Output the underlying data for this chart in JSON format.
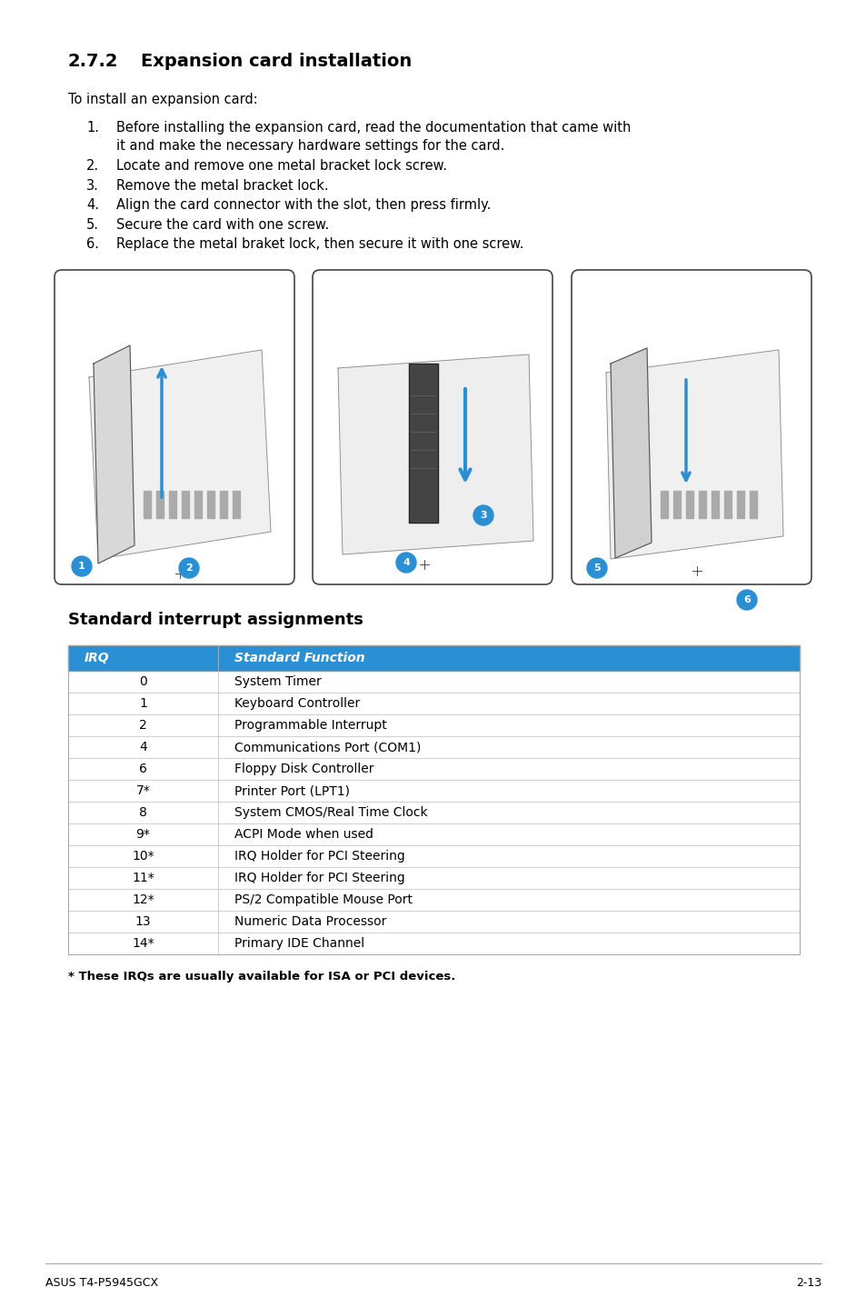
{
  "page_bg": "#ffffff",
  "section_num": "2.7.2",
  "section_title_rest": "Expansion card installation",
  "intro_text": "To install an expansion card:",
  "steps": [
    "Before installing the expansion card, read the documentation that came with\nit and make the necessary hardware settings for the card.",
    "Locate and remove one metal bracket lock screw.",
    "Remove the metal bracket lock.",
    "Align the card connector with the slot, then press firmly.",
    "Secure the card with one screw.",
    "Replace the metal braket lock, then secure it with one screw."
  ],
  "table_title": "Standard interrupt assignments",
  "table_header": [
    "IRQ",
    "Standard Function"
  ],
  "table_header_bg": "#2b8fd4",
  "table_header_color": "#ffffff",
  "table_rows": [
    [
      "0",
      "System Timer"
    ],
    [
      "1",
      "Keyboard Controller"
    ],
    [
      "2",
      "Programmable Interrupt"
    ],
    [
      "4",
      "Communications Port (COM1)"
    ],
    [
      "6",
      "Floppy Disk Controller"
    ],
    [
      "7*",
      "Printer Port (LPT1)"
    ],
    [
      "8",
      "System CMOS/Real Time Clock"
    ],
    [
      "9*",
      "ACPI Mode when used"
    ],
    [
      "10*",
      "IRQ Holder for PCI Steering"
    ],
    [
      "11*",
      "IRQ Holder for PCI Steering"
    ],
    [
      "12*",
      "PS/2 Compatible Mouse Port"
    ],
    [
      "13",
      "Numeric Data Processor"
    ],
    [
      "14*",
      "Primary IDE Channel"
    ]
  ],
  "footnote": "* These IRQs are usually available for ISA or PCI devices.",
  "footer_left": "ASUS T4-P5945GCX",
  "footer_right": "2-13",
  "circle_color": "#2b8fd4",
  "circle_text_color": "#ffffff",
  "line_color": "#333333",
  "arrow_color": "#2b8fd4"
}
